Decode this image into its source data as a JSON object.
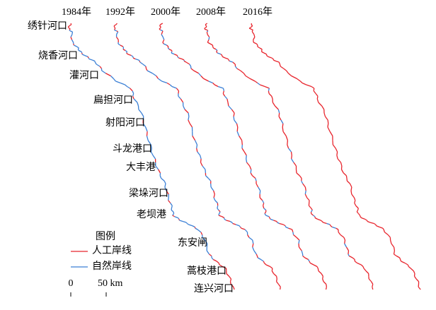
{
  "years": [
    "1984年",
    "1992年",
    "2000年",
    "2008年",
    "2016年"
  ],
  "places": [
    "绣针河口",
    "烧香河口",
    "灌河口",
    "扁担河口",
    "射阳河口",
    "斗龙港口",
    "大丰港",
    "梁垛河口",
    "老坝港",
    "东安闸",
    "蒿枝港口",
    "连兴河口"
  ],
  "legend": {
    "title": "图例",
    "items": [
      "人工岸线",
      "自然岸线"
    ]
  },
  "scale_bar": {
    "labels": [
      "0",
      "50 km"
    ]
  }
}
